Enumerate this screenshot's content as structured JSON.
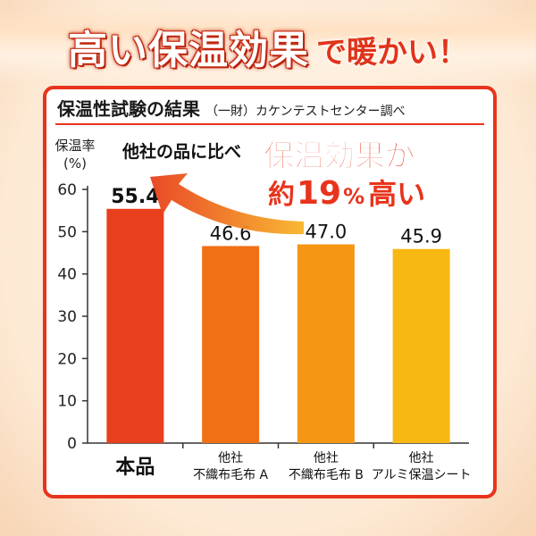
{
  "headline": {
    "main": "高い保温効果",
    "sub": "で暖かい！"
  },
  "card": {
    "title": "保温性試験の結果",
    "note": "（一財）カケンテストセンター調べ"
  },
  "callout": {
    "compare": "他社の品に比べ",
    "claim_line1": "保温効果が",
    "claim_prefix": "約",
    "claim_number": "19",
    "claim_unit": "%",
    "claim_suffix": "高い"
  },
  "chart_data": {
    "type": "bar",
    "ylabel": "保温率\n(%)",
    "ylim": [
      0,
      60
    ],
    "yticks": [
      0,
      10,
      20,
      30,
      40,
      50,
      60
    ],
    "categories": [
      "本品",
      "他社\n不織布毛布 A",
      "他社\n不織布毛布 B",
      "他社\nアルミ保温シート"
    ],
    "values": [
      55.4,
      46.6,
      47.0,
      45.9
    ],
    "value_labels": [
      "55.4",
      "46.6",
      "47.0",
      "45.9"
    ],
    "colors": [
      "#e8401c",
      "#f07016",
      "#f59615",
      "#f9b811"
    ]
  }
}
